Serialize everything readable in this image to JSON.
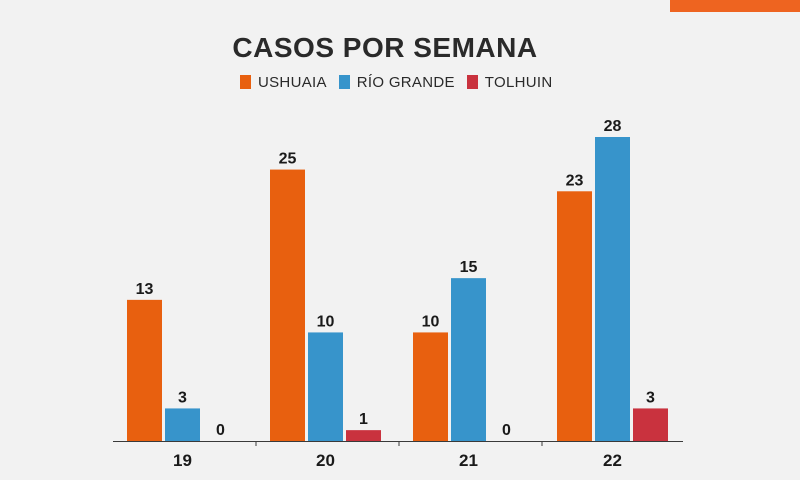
{
  "accent_color": "#ee6420",
  "chart_data": {
    "type": "bar",
    "title": "CASOS POR SEMANA",
    "categories": [
      "19",
      "20",
      "21",
      "22"
    ],
    "series": [
      {
        "name": "USHUAIA",
        "color": "#e8600f",
        "values": [
          13,
          25,
          10,
          23
        ]
      },
      {
        "name": "RÍO GRANDE",
        "color": "#3794cb",
        "values": [
          3,
          10,
          15,
          28
        ]
      },
      {
        "name": "TOLHUIN",
        "color": "#c9323e",
        "values": [
          0,
          1,
          0,
          3
        ]
      }
    ],
    "xlabel": "",
    "ylabel": "",
    "ylim": [
      0,
      28
    ],
    "grid": false,
    "legend_position": "top"
  }
}
